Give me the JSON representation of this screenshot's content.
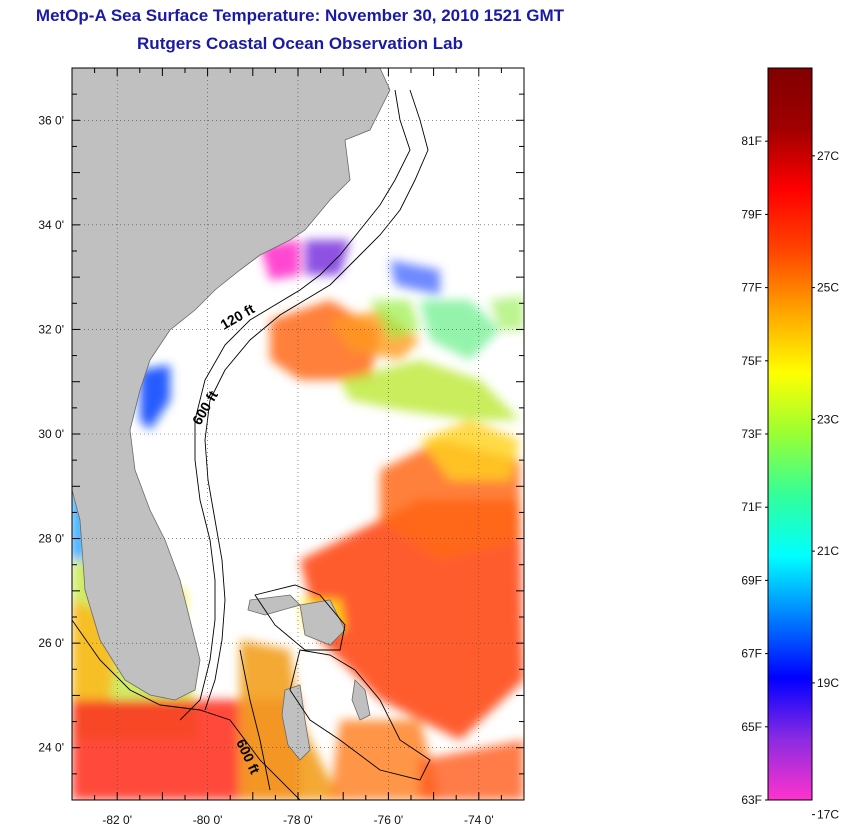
{
  "header": {
    "title": "MetOp-A Sea Surface Temperature:  November 30, 2010 1521 GMT",
    "subtitle": "Rutgers Coastal Ocean Observation Lab"
  },
  "map": {
    "lon_range": [
      -83,
      -73
    ],
    "lat_range": [
      23,
      37
    ],
    "lat_ticks": [
      {
        "value": 36,
        "label": "36 0'"
      },
      {
        "value": 34,
        "label": "34 0'"
      },
      {
        "value": 32,
        "label": "32 0'"
      },
      {
        "value": 30,
        "label": "30 0'"
      },
      {
        "value": 28,
        "label": "28 0'"
      },
      {
        "value": 26,
        "label": "26 0'"
      },
      {
        "value": 24,
        "label": "24 0'"
      }
    ],
    "lon_ticks": [
      {
        "value": -82,
        "label": "-82 0'"
      },
      {
        "value": -80,
        "label": "-80 0'"
      },
      {
        "value": -78,
        "label": "-78 0'"
      },
      {
        "value": -76,
        "label": "-76 0'"
      },
      {
        "value": -74,
        "label": "-74 0'"
      }
    ],
    "contour_labels": [
      "120 ft",
      "600 ft",
      "600 ft"
    ],
    "land_color": "#c0c0c0",
    "grid": "dotted"
  },
  "colorbar": {
    "range_f": [
      63,
      83
    ],
    "f_labels": [
      "81F",
      "79F",
      "77F",
      "75F",
      "73F",
      "71F",
      "69F",
      "67F",
      "65F",
      "63F"
    ],
    "c_labels": [
      "27C",
      "25C",
      "23C",
      "21C",
      "19C",
      "17C"
    ],
    "colors": [
      "#ff33cc",
      "#8a2be2",
      "#0000ff",
      "#0080ff",
      "#00ffff",
      "#33ff99",
      "#99ff33",
      "#ffff00",
      "#ffa500",
      "#ff4500",
      "#ff0000",
      "#a00000",
      "#800000"
    ]
  }
}
